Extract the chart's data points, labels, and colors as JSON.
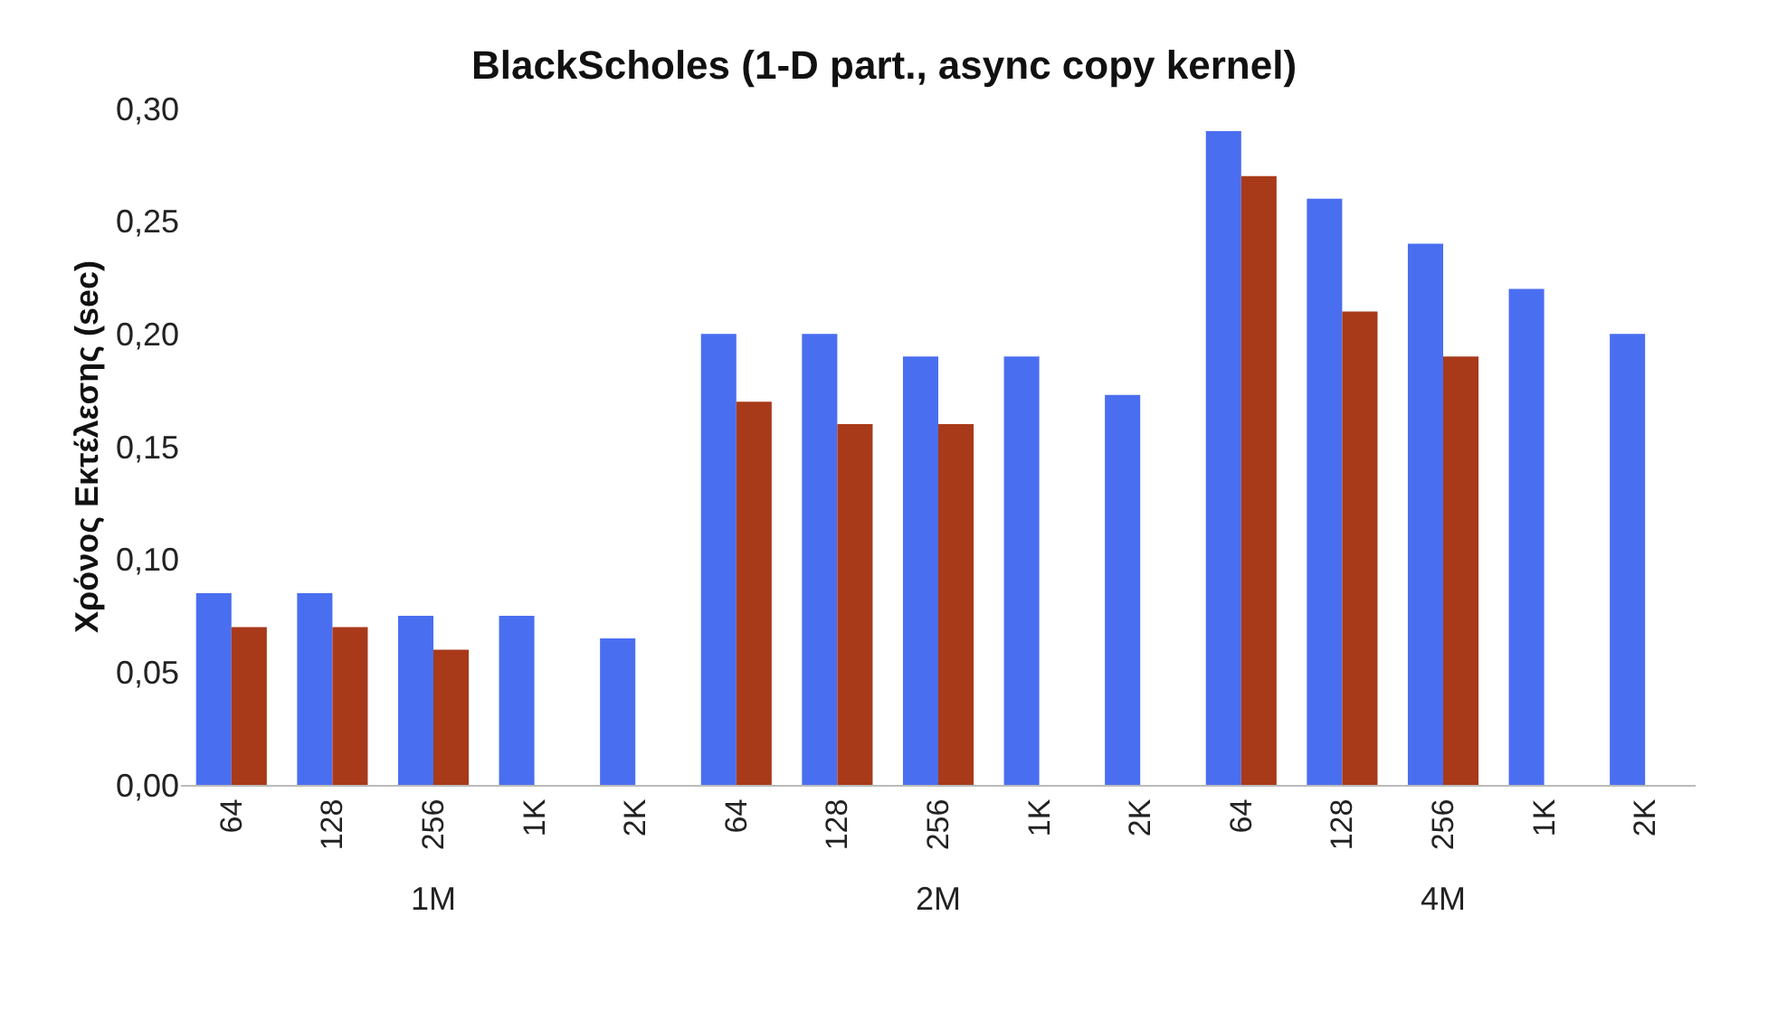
{
  "chart_data": {
    "type": "bar",
    "title": "BlackScholes (1-D part., async copy kernel)",
    "ylabel": "Χρόνος Εκτέλεσης (sec)",
    "categories": [
      "64",
      "128",
      "256",
      "1K",
      "2K",
      "64",
      "128",
      "256",
      "1K",
      "2K",
      "64",
      "128",
      "256",
      "1K",
      "2K"
    ],
    "series": [
      {
        "color": "#4a6ef0",
        "values": [
          0.085,
          0.085,
          0.075,
          0.075,
          0.065,
          0.2,
          0.2,
          0.19,
          0.19,
          0.173,
          0.29,
          0.26,
          0.24,
          0.22,
          0.2
        ]
      },
      {
        "color": "#a83a1a",
        "values": [
          0.07,
          0.07,
          0.06,
          null,
          null,
          0.17,
          0.16,
          0.16,
          null,
          null,
          0.27,
          0.21,
          0.19,
          null,
          null
        ]
      }
    ],
    "annotations": [
      "1M",
      "2M",
      "4M"
    ],
    "ylim": [
      0,
      0.3
    ],
    "yticks": [
      {
        "value": 0,
        "label": "0,00"
      },
      {
        "value": 0.05,
        "label": "0,05"
      },
      {
        "value": 0.1,
        "label": "0,10"
      },
      {
        "value": 0.15,
        "label": "0,15"
      },
      {
        "value": 0.2,
        "label": "0,20"
      },
      {
        "value": 0.25,
        "label": "0,25"
      },
      {
        "value": 0.3,
        "label": "0,30"
      }
    ],
    "grid": false
  }
}
